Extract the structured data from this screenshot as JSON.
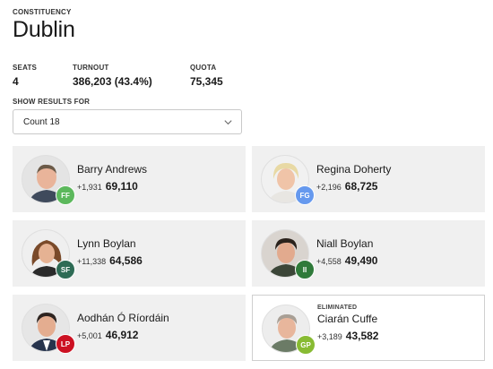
{
  "header": {
    "label": "CONSTITUENCY",
    "name": "Dublin"
  },
  "stats": {
    "seats_label": "SEATS",
    "seats_value": "4",
    "turnout_label": "TURNOUT",
    "turnout_value": "386,203 (43.4%)",
    "quota_label": "QUOTA",
    "quota_value": "75,345"
  },
  "results": {
    "label": "SHOW RESULTS FOR",
    "selected": "Count 18"
  },
  "candidates": [
    {
      "name": "Barry Andrews",
      "party": "FF",
      "party_color": "#5cb85c",
      "change": "+1,931",
      "total": "69,110",
      "status": ""
    },
    {
      "name": "Regina Doherty",
      "party": "FG",
      "party_color": "#6699ee",
      "change": "+2,196",
      "total": "68,725",
      "status": ""
    },
    {
      "name": "Lynn Boylan",
      "party": "SF",
      "party_color": "#2e6b55",
      "change": "+11,338",
      "total": "64,586",
      "status": ""
    },
    {
      "name": "Niall Boylan",
      "party": "II",
      "party_color": "#2f7a3a",
      "change": "+4,558",
      "total": "49,490",
      "status": ""
    },
    {
      "name": "Aodhán Ó Ríordáin",
      "party": "LP",
      "party_color": "#cc1122",
      "change": "+5,001",
      "total": "46,912",
      "status": ""
    },
    {
      "name": "Ciarán Cuffe",
      "party": "GP",
      "party_color": "#88bb33",
      "change": "+3,189",
      "total": "43,582",
      "status": "ELIMINATED"
    }
  ]
}
